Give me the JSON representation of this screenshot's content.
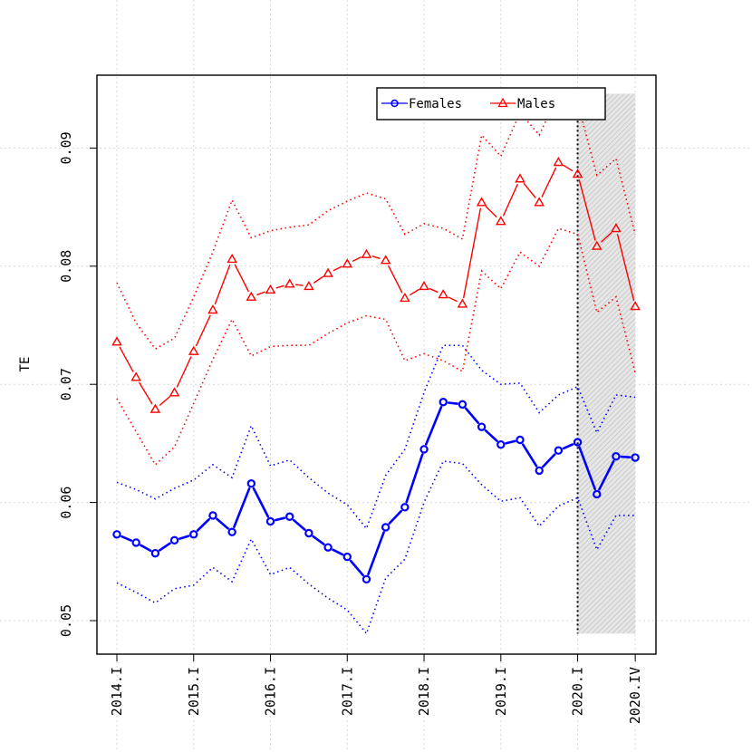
{
  "chart_data": {
    "type": "line",
    "ylabel": "TE",
    "ylim": [
      0.046,
      0.0965
    ],
    "yticks": [
      0.05,
      0.06,
      0.07,
      0.08,
      0.09
    ],
    "ytick_labels": [
      "0.05",
      "0.06",
      "0.07",
      "0.08",
      "0.09"
    ],
    "xticks": [
      0,
      4,
      8,
      12,
      16,
      20,
      24,
      27
    ],
    "xtick_labels": [
      "2014.I",
      "2015.I",
      "2016.I",
      "2017.I",
      "2018.I",
      "2019.I",
      "2020.I",
      "2020.IV"
    ],
    "grid": true,
    "legend_position": "top-right",
    "shaded_forecast_region": {
      "from": 24,
      "to": 27,
      "y_range": [
        0.0489,
        0.0946
      ]
    },
    "vertical_reference_line": 24,
    "series": [
      {
        "name": "Females",
        "color": "#0000ff",
        "marker": "circle",
        "x": [
          0,
          1,
          2,
          3,
          4,
          5,
          6,
          7,
          8,
          9,
          10,
          11,
          12,
          13,
          14,
          15,
          16,
          17,
          18,
          19,
          20,
          21,
          22,
          23,
          24,
          25,
          26,
          27
        ],
        "values": [
          0.0573,
          0.0566,
          0.0557,
          0.0568,
          0.0573,
          0.0589,
          0.0575,
          0.0616,
          0.0584,
          0.0588,
          0.0574,
          0.0562,
          0.0554,
          0.0535,
          0.0579,
          0.0596,
          0.0645,
          0.0685,
          0.0683,
          0.0664,
          0.0649,
          0.0653,
          0.0627,
          0.0644,
          0.0651,
          0.0607,
          0.0639,
          0.0638
        ],
        "upper": [
          0.0617,
          0.0611,
          0.0603,
          0.0612,
          0.0619,
          0.0632,
          0.0621,
          0.0665,
          0.0631,
          0.0636,
          0.0621,
          0.0608,
          0.0598,
          0.0578,
          0.0623,
          0.0645,
          0.0693,
          0.0733,
          0.0733,
          0.0712,
          0.07,
          0.0701,
          0.0676,
          0.0691,
          0.0698,
          0.0659,
          0.0691,
          0.0689
        ],
        "lower": [
          0.0532,
          0.0524,
          0.0515,
          0.0527,
          0.053,
          0.0545,
          0.0533,
          0.0569,
          0.0539,
          0.0545,
          0.0531,
          0.0519,
          0.0509,
          0.0489,
          0.0536,
          0.0552,
          0.06,
          0.0635,
          0.0633,
          0.0615,
          0.0601,
          0.0604,
          0.058,
          0.0597,
          0.0604,
          0.056,
          0.0589,
          0.0589
        ]
      },
      {
        "name": "Males",
        "color": "#ff0000",
        "marker": "triangle",
        "x": [
          0,
          1,
          2,
          3,
          4,
          5,
          6,
          7,
          8,
          9,
          10,
          11,
          12,
          13,
          14,
          15,
          16,
          17,
          18,
          19,
          20,
          21,
          22,
          23,
          24,
          25,
          26,
          27
        ],
        "values": [
          0.0736,
          0.0706,
          0.0679,
          0.0693,
          0.0728,
          0.0763,
          0.0806,
          0.0774,
          0.078,
          0.0785,
          0.0783,
          0.0794,
          0.0802,
          0.081,
          0.0805,
          0.0773,
          0.0783,
          0.0776,
          0.0768,
          0.0854,
          0.0838,
          0.0874,
          0.0854,
          0.0888,
          0.0878,
          0.0817,
          0.0832,
          0.0766
        ],
        "upper": [
          0.0786,
          0.0752,
          0.073,
          0.0739,
          0.0774,
          0.0812,
          0.0856,
          0.0824,
          0.083,
          0.0833,
          0.0835,
          0.0847,
          0.0855,
          0.0862,
          0.0857,
          0.0827,
          0.0836,
          0.0832,
          0.0823,
          0.0911,
          0.0893,
          0.093,
          0.0911,
          0.0946,
          0.0938,
          0.0877,
          0.0891,
          0.0827
        ],
        "lower": [
          0.0688,
          0.066,
          0.0632,
          0.0647,
          0.0684,
          0.0721,
          0.0755,
          0.0724,
          0.0732,
          0.0733,
          0.0733,
          0.0743,
          0.0752,
          0.0758,
          0.0755,
          0.072,
          0.0726,
          0.072,
          0.0711,
          0.0796,
          0.0781,
          0.0812,
          0.08,
          0.0832,
          0.0827,
          0.0761,
          0.0774,
          0.071
        ]
      }
    ]
  }
}
